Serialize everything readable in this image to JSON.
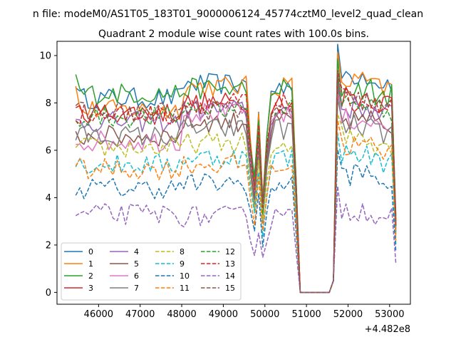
{
  "figure": {
    "suptitle": "n file: modeM0/AS1T05_183T01_9000006124_45774cztM0_level2_quad_clean",
    "title": "Quadrant 2 module wise count rates with 100.0s bins.",
    "x_offset_label": "+4.482e8"
  },
  "chart_data": {
    "type": "line",
    "title": "Quadrant 2 module wise count rates with 100.0s bins.",
    "xlabel": "",
    "ylabel": "",
    "x_offset": 448200000,
    "xlim": [
      45000,
      53500
    ],
    "ylim": [
      -0.5,
      10.6
    ],
    "xticks": [
      46000,
      47000,
      48000,
      49000,
      50000,
      51000,
      52000,
      53000
    ],
    "yticks": [
      0,
      2,
      4,
      6,
      8,
      10
    ],
    "xtick_labels": [
      "46000",
      "47000",
      "48000",
      "49000",
      "50000",
      "51000",
      "52000",
      "53000"
    ],
    "ytick_labels": [
      "0",
      "2",
      "4",
      "6",
      "8",
      "10"
    ],
    "grid": false,
    "legend_position": "lower-left",
    "legend_columns": 4,
    "segments": [
      {
        "x_start": 45450,
        "x_end": 50750,
        "step": 100
      },
      {
        "x_end_gap": 51650
      },
      {
        "x_start": 51650,
        "x_end": 53150,
        "step": 100
      }
    ],
    "series": [
      {
        "name": "0",
        "color": "#1f77b4",
        "dash": "solid",
        "level_a": 8.2,
        "level_b": 8.8,
        "level_c": 9.2
      },
      {
        "name": "1",
        "color": "#ff7f0e",
        "dash": "solid",
        "level_a": 7.7,
        "level_b": 8.7,
        "level_c": 8.9
      },
      {
        "name": "2",
        "color": "#2ca02c",
        "dash": "solid",
        "level_a": 8.4,
        "level_b": 8.6,
        "level_c": 8.6
      },
      {
        "name": "3",
        "color": "#d62728",
        "dash": "solid",
        "level_a": 7.6,
        "level_b": 8.0,
        "level_c": 8.3
      },
      {
        "name": "4",
        "color": "#9467bd",
        "dash": "solid",
        "level_a": 7.2,
        "level_b": 7.7,
        "level_c": 7.8
      },
      {
        "name": "5",
        "color": "#8c564b",
        "dash": "solid",
        "level_a": 6.6,
        "level_b": 7.2,
        "level_c": 7.3
      },
      {
        "name": "6",
        "color": "#e377c2",
        "dash": "solid",
        "level_a": 6.4,
        "level_b": 7.6,
        "level_c": 7.3
      },
      {
        "name": "7",
        "color": "#7f7f7f",
        "dash": "solid",
        "level_a": 6.6,
        "level_b": 6.9,
        "level_c": 7.0
      },
      {
        "name": "8",
        "color": "#bcbd22",
        "dash": "dashed",
        "level_a": 6.1,
        "level_b": 6.3,
        "level_c": 6.6
      },
      {
        "name": "9",
        "color": "#17becf",
        "dash": "dashed",
        "level_a": 5.4,
        "level_b": 5.7,
        "level_c": 5.8
      },
      {
        "name": "10",
        "color": "#1f77b4",
        "dash": "dashed",
        "level_a": 4.4,
        "level_b": 4.6,
        "level_c": 5.0
      },
      {
        "name": "11",
        "color": "#ff7f0e",
        "dash": "dashed",
        "level_a": 5.2,
        "level_b": 5.4,
        "level_c": 6.2
      },
      {
        "name": "12",
        "color": "#2ca02c",
        "dash": "dashed",
        "level_a": 7.4,
        "level_b": 7.8,
        "level_c": 8.0
      },
      {
        "name": "13",
        "color": "#d62728",
        "dash": "dashed",
        "level_a": 7.5,
        "level_b": 8.0,
        "level_c": 8.1
      },
      {
        "name": "14",
        "color": "#9467bd",
        "dash": "dashed",
        "level_a": 3.3,
        "level_b": 3.2,
        "level_c": 3.5
      },
      {
        "name": "15",
        "color": "#8c564b",
        "dash": "dashed",
        "level_a": 7.6,
        "level_b": 7.7,
        "level_c": 8.1
      }
    ]
  }
}
